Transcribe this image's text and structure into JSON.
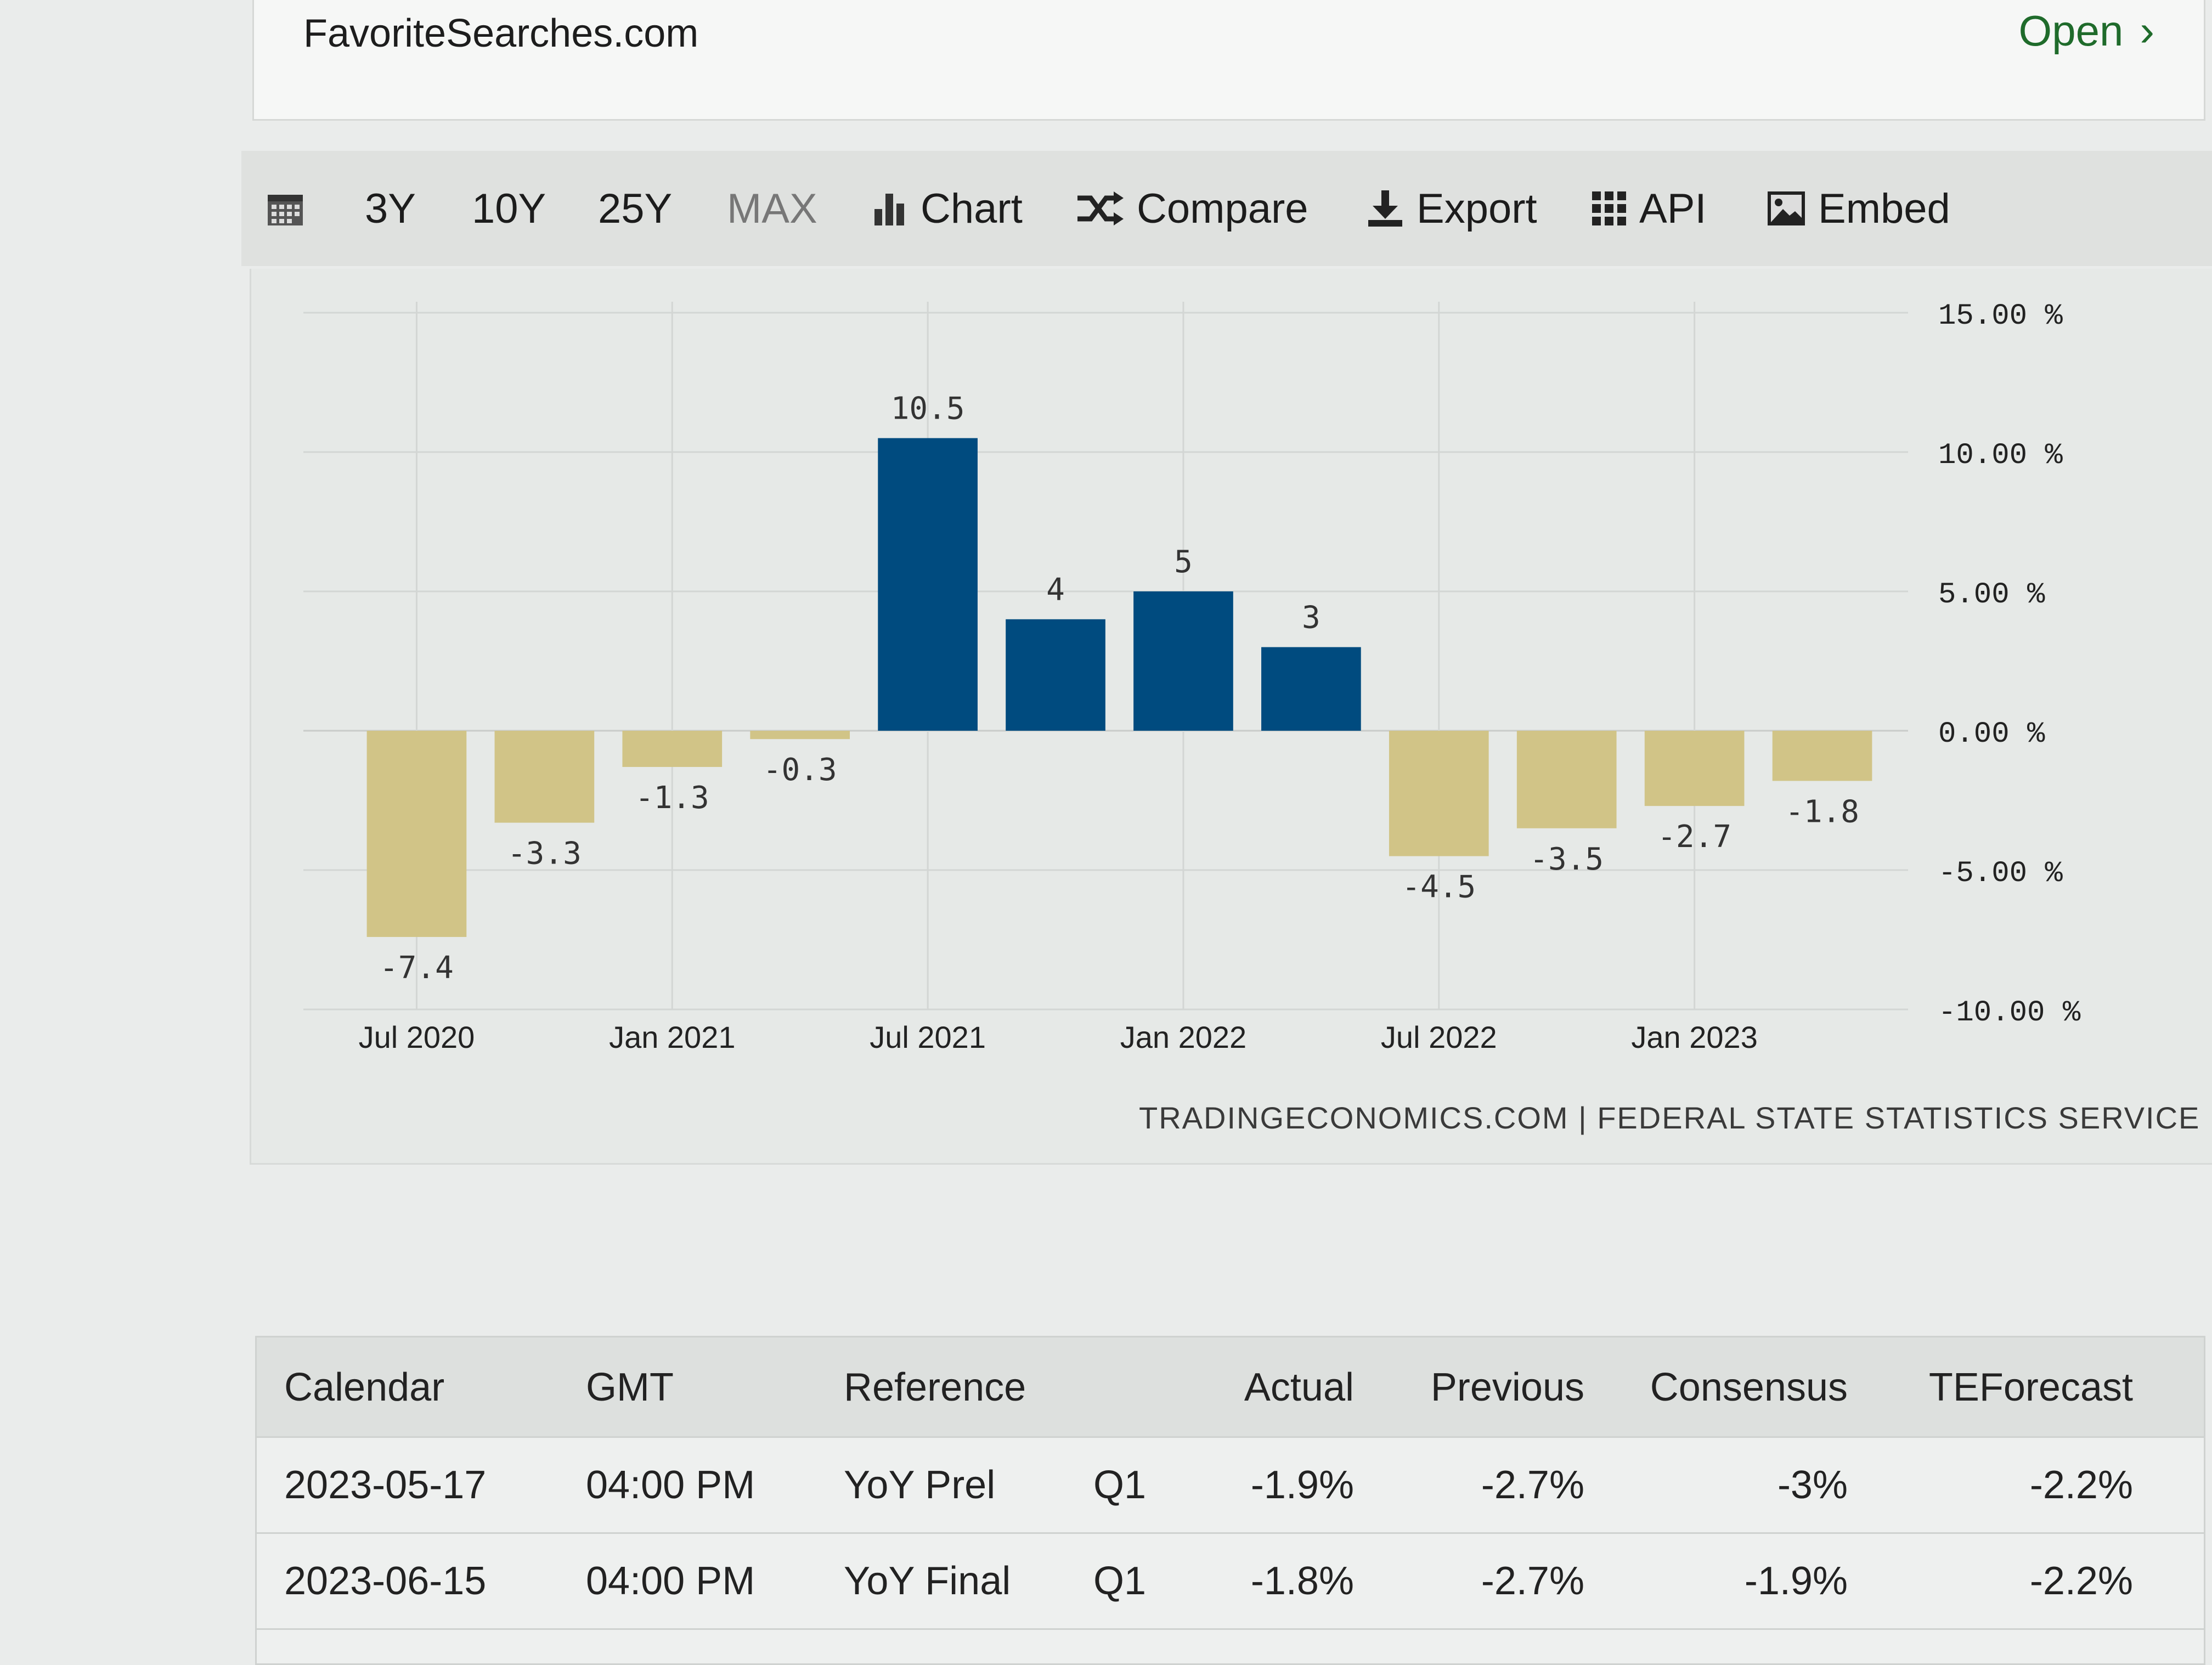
{
  "ad": {
    "site": "FavoriteSearches.com",
    "open_label": "Open"
  },
  "toolbar": {
    "range_3y": "3Y",
    "range_10y": "10Y",
    "range_25y": "25Y",
    "range_max": "MAX",
    "chart": "Chart",
    "compare": "Compare",
    "export": "Export",
    "api": "API",
    "embed": "Embed"
  },
  "colors": {
    "positive": "#004b7f",
    "negative": "#d1c487",
    "accent_open": "#1f6b2b"
  },
  "chart_data": {
    "type": "bar",
    "categories": [
      "2020Q2",
      "2020Q3",
      "2020Q4",
      "2021Q1",
      "2021Q2",
      "2021Q3",
      "2021Q4",
      "2022Q1",
      "2022Q2",
      "2022Q3",
      "2022Q4",
      "2023Q1"
    ],
    "values": [
      -7.4,
      -3.3,
      -1.3,
      -0.3,
      10.5,
      4,
      5,
      3,
      -4.5,
      -3.5,
      -2.7,
      -1.8
    ],
    "value_labels": [
      "-7.4",
      "-3.3",
      "-1.3",
      "-0.3",
      "10.5",
      "4",
      "5",
      "3",
      "-4.5",
      "-3.5",
      "-2.7",
      "-1.8"
    ],
    "x_ticks": [
      "Jul 2020",
      "Jan 2021",
      "Jul 2021",
      "Jan 2022",
      "Jul 2022",
      "Jan 2023"
    ],
    "x_tick_after_index": [
      0,
      2,
      4,
      6,
      8,
      10
    ],
    "y_ticks": [
      "15.00 %",
      "10.00 %",
      "5.00 %",
      "0.00 %",
      "-5.00 %",
      "-10.00 %"
    ],
    "y_tick_values": [
      15,
      10,
      5,
      0,
      -5,
      -10
    ],
    "ylim": [
      -10,
      15
    ],
    "grid": true,
    "source_text": "TRADINGECONOMICS.COM | FEDERAL STATE STATISTICS SERVICE"
  },
  "calendar": {
    "headers": {
      "calendar": "Calendar",
      "gmt": "GMT",
      "reference": "Reference",
      "actual": "Actual",
      "previous": "Previous",
      "consensus": "Consensus",
      "teforecast": "TEForecast"
    },
    "rows": [
      {
        "date": "2023-05-17",
        "time": "04:00 PM",
        "reference": "YoY Prel",
        "period": "Q1",
        "actual": "-1.9%",
        "previous": "-2.7%",
        "consensus": "-3%",
        "teforecast": "-2.2%"
      },
      {
        "date": "2023-06-15",
        "time": "04:00 PM",
        "reference": "YoY Final",
        "period": "Q1",
        "actual": "-1.8%",
        "previous": "-2.7%",
        "consensus": "-1.9%",
        "teforecast": "-2.2%"
      }
    ]
  }
}
